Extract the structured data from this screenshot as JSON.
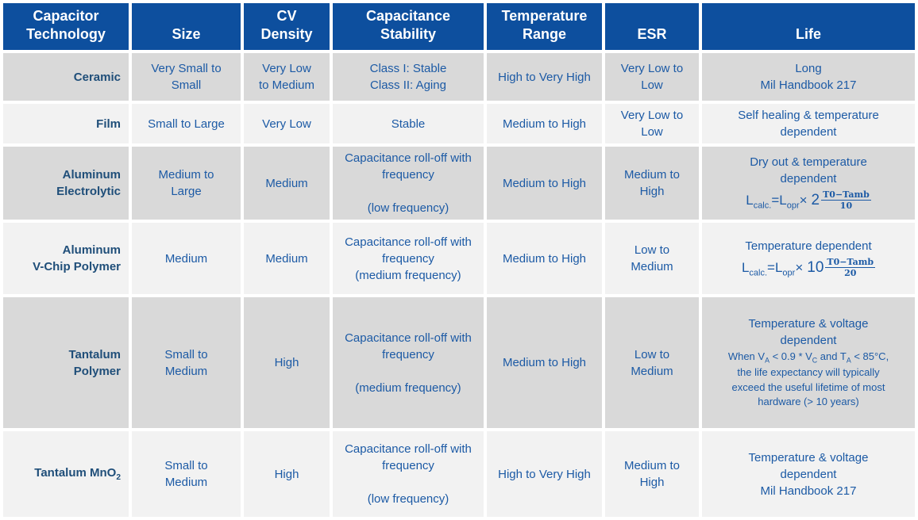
{
  "colors": {
    "background": "#ffffff",
    "header_bg": "#0d4f9e",
    "header_text": "#ffffff",
    "row_alt_dark": "#d9d9d9",
    "row_alt_light": "#f2f2f2",
    "cell_text": "#1c5aa5",
    "label_text": "#1f4e79"
  },
  "table": {
    "headers": [
      {
        "lines": [
          "Capacitor",
          "Technology"
        ]
      },
      {
        "lines": [
          "Size"
        ]
      },
      {
        "lines": [
          "CV",
          "Density"
        ]
      },
      {
        "lines": [
          "Capacitance",
          "Stability"
        ]
      },
      {
        "lines": [
          "Temperature",
          "Range"
        ]
      },
      {
        "lines": [
          "ESR"
        ]
      },
      {
        "lines": [
          "Life"
        ]
      }
    ],
    "rows": [
      {
        "tech": {
          "lines": [
            [
              {
                "t": "text",
                "v": "Ceramic"
              }
            ]
          ]
        },
        "size": [
          "Very Small to",
          "Small"
        ],
        "cv_density": [
          "Very Low",
          "to Medium"
        ],
        "stability": {
          "paras": [
            "Class I: Stable",
            "Class II: Aging"
          ],
          "spaced": false
        },
        "temp_range": "High to Very High",
        "esr": [
          "Very Low to",
          "Low"
        ],
        "life": {
          "lines": [
            "Long",
            "Mil Handbook 217"
          ]
        }
      },
      {
        "tech": {
          "lines": [
            [
              {
                "t": "text",
                "v": "Film"
              }
            ]
          ]
        },
        "size": "Small to Large",
        "cv_density": "Very Low",
        "stability": {
          "paras": [
            "Stable"
          ],
          "spaced": false
        },
        "temp_range": "Medium to High",
        "esr": [
          "Very Low to",
          "Low"
        ],
        "life": {
          "lines": [
            "Self healing & temperature dependent"
          ]
        }
      },
      {
        "tech": {
          "lines": [
            [
              {
                "t": "text",
                "v": "Aluminum"
              }
            ],
            [
              {
                "t": "text",
                "v": "Electrolytic"
              }
            ]
          ]
        },
        "size": [
          "Medium to",
          "Large"
        ],
        "cv_density": "Medium",
        "stability": {
          "paras": [
            "Capacitance roll-off with frequency",
            "(low frequency)"
          ],
          "spaced": true
        },
        "temp_range": "Medium to High",
        "esr": [
          "Medium to",
          "High"
        ],
        "life": {
          "lines": [
            "Dry out & temperature dependent"
          ],
          "formula": {
            "pre": [
              {
                "t": "text",
                "v": "L"
              },
              {
                "t": "sub",
                "v": "calc."
              },
              {
                "t": "text",
                "v": "=L"
              },
              {
                "t": "sub",
                "v": "opr"
              },
              {
                "t": "text",
                "v": "×"
              }
            ],
            "base": "2",
            "numerator": "T0−Tamb",
            "denominator": "10"
          }
        }
      },
      {
        "tech": {
          "lines": [
            [
              {
                "t": "text",
                "v": "Aluminum"
              }
            ],
            [
              {
                "t": "text",
                "v": "V-Chip Polymer"
              }
            ]
          ]
        },
        "size": "Medium",
        "cv_density": "Medium",
        "stability": {
          "paras": [
            "Capacitance roll-off with frequency",
            "(medium frequency)"
          ],
          "spaced": false
        },
        "temp_range": "Medium to High",
        "esr": [
          "Low to",
          "Medium"
        ],
        "life": {
          "lines": [
            "Temperature dependent"
          ],
          "formula": {
            "pre": [
              {
                "t": "text",
                "v": "L"
              },
              {
                "t": "sub",
                "v": "calc."
              },
              {
                "t": "text",
                "v": "=L"
              },
              {
                "t": "sub",
                "v": "opr"
              },
              {
                "t": "text",
                "v": "×"
              }
            ],
            "base": "10",
            "numerator": "T0−Tamb",
            "denominator": "20"
          }
        }
      },
      {
        "tech": {
          "lines": [
            [
              {
                "t": "text",
                "v": "Tantalum"
              }
            ],
            [
              {
                "t": "text",
                "v": "Polymer"
              }
            ]
          ]
        },
        "size": [
          "Small to",
          "Medium"
        ],
        "cv_density": "High",
        "stability": {
          "paras": [
            "Capacitance roll-off with frequency",
            "(medium frequency)"
          ],
          "spaced": true
        },
        "temp_range": "Medium to High",
        "esr": [
          "Low to",
          "Medium"
        ],
        "life": {
          "lines": [
            "Temperature & voltage dependent"
          ],
          "note": [
            {
              "t": "text",
              "v": "When V"
            },
            {
              "t": "sub",
              "v": "A"
            },
            {
              "t": "text",
              "v": " < 0.9 * V"
            },
            {
              "t": "sub",
              "v": "C"
            },
            {
              "t": "text",
              "v": " and T"
            },
            {
              "t": "sub",
              "v": "A"
            },
            {
              "t": "text",
              "v": " < 85°C, the life expectancy will typically exceed the useful lifetime of most hardware (> 10 years)"
            }
          ]
        }
      },
      {
        "tech": {
          "lines": [
            [
              {
                "t": "text",
                "v": "Tantalum MnO"
              },
              {
                "t": "sub",
                "v": "2"
              }
            ]
          ]
        },
        "size": [
          "Small to",
          "Medium"
        ],
        "cv_density": "High",
        "stability": {
          "paras": [
            "Capacitance roll-off with frequency",
            "(low frequency)"
          ],
          "spaced": true
        },
        "temp_range": "High to Very High",
        "esr": [
          "Medium to",
          "High"
        ],
        "life": {
          "lines": [
            "Temperature & voltage dependent",
            "Mil Handbook 217"
          ]
        }
      }
    ]
  }
}
